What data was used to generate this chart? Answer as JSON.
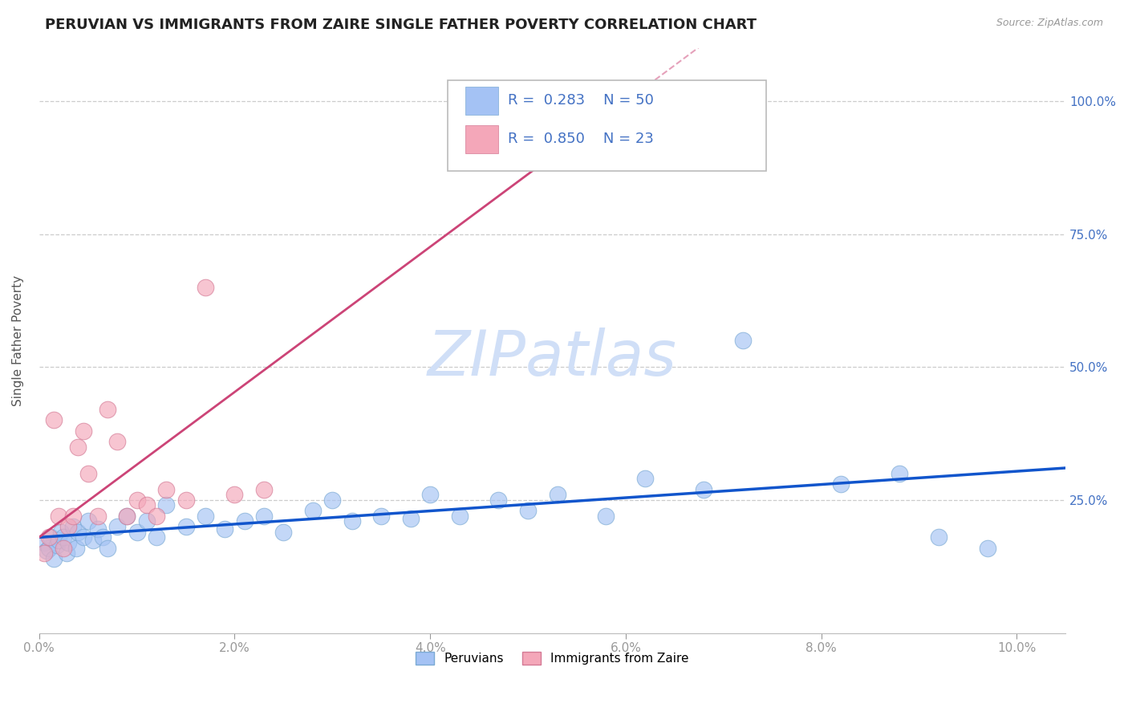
{
  "title": "PERUVIAN VS IMMIGRANTS FROM ZAIRE SINGLE FATHER POVERTY CORRELATION CHART",
  "source": "Source: ZipAtlas.com",
  "ylabel": "Single Father Poverty",
  "x_tick_labels": [
    "0.0%",
    "2.0%",
    "4.0%",
    "6.0%",
    "8.0%",
    "10.0%"
  ],
  "x_tick_vals": [
    0.0,
    2.0,
    4.0,
    6.0,
    8.0,
    10.0
  ],
  "y_tick_labels": [
    "25.0%",
    "50.0%",
    "75.0%",
    "100.0%"
  ],
  "y_tick_vals": [
    25.0,
    50.0,
    75.0,
    100.0
  ],
  "xlim": [
    0.0,
    10.5
  ],
  "ylim": [
    0.0,
    110.0
  ],
  "legend_labels": [
    "Peruvians",
    "Immigrants from Zaire"
  ],
  "R_peruvian": 0.283,
  "N_peruvian": 50,
  "R_zaire": 0.85,
  "N_zaire": 23,
  "blue_color": "#a4c2f4",
  "pink_color": "#f4a7b9",
  "blue_line_color": "#1155cc",
  "pink_line_color": "#cc4477",
  "axis_label_color": "#4472c4",
  "watermark_color": "#d0dff7",
  "peruvian_x": [
    0.05,
    0.08,
    0.1,
    0.12,
    0.15,
    0.18,
    0.2,
    0.22,
    0.25,
    0.28,
    0.3,
    0.35,
    0.38,
    0.4,
    0.45,
    0.5,
    0.55,
    0.6,
    0.65,
    0.7,
    0.8,
    0.9,
    1.0,
    1.1,
    1.2,
    1.3,
    1.5,
    1.7,
    1.9,
    2.1,
    2.3,
    2.5,
    2.8,
    3.0,
    3.2,
    3.5,
    3.8,
    4.0,
    4.3,
    4.7,
    5.0,
    5.3,
    5.8,
    6.2,
    6.8,
    7.2,
    8.2,
    8.8,
    9.2,
    9.7
  ],
  "peruvian_y": [
    17.0,
    15.5,
    16.0,
    18.0,
    14.0,
    16.5,
    17.5,
    19.0,
    18.0,
    15.0,
    17.0,
    20.0,
    16.0,
    19.0,
    18.0,
    21.0,
    17.5,
    19.5,
    18.0,
    16.0,
    20.0,
    22.0,
    19.0,
    21.0,
    18.0,
    24.0,
    20.0,
    22.0,
    19.5,
    21.0,
    22.0,
    19.0,
    23.0,
    25.0,
    21.0,
    22.0,
    21.5,
    26.0,
    22.0,
    25.0,
    23.0,
    26.0,
    22.0,
    29.0,
    27.0,
    55.0,
    28.0,
    30.0,
    18.0,
    16.0
  ],
  "zaire_x": [
    0.05,
    0.1,
    0.15,
    0.2,
    0.25,
    0.3,
    0.35,
    0.4,
    0.45,
    0.5,
    0.6,
    0.7,
    0.8,
    0.9,
    1.0,
    1.1,
    1.2,
    1.3,
    1.5,
    1.7,
    2.0,
    2.3,
    4.5
  ],
  "zaire_y": [
    15.0,
    18.0,
    40.0,
    22.0,
    16.0,
    20.0,
    22.0,
    35.0,
    38.0,
    30.0,
    22.0,
    42.0,
    36.0,
    22.0,
    25.0,
    24.0,
    22.0,
    27.0,
    25.0,
    65.0,
    26.0,
    27.0,
    100.0
  ]
}
